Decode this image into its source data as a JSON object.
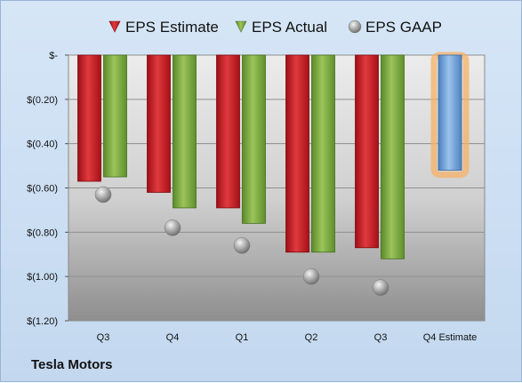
{
  "company": "Tesla Motors",
  "chart_data": {
    "type": "bar",
    "categories": [
      "Q3",
      "Q4",
      "Q1",
      "Q2",
      "Q3",
      "Q4 Estimate"
    ],
    "series": [
      {
        "name": "EPS Estimate",
        "values": [
          -0.57,
          -0.62,
          -0.69,
          -0.89,
          -0.87,
          null
        ],
        "color": "#c8161d"
      },
      {
        "name": "EPS Actual",
        "values": [
          -0.55,
          -0.69,
          -0.76,
          -0.89,
          -0.92,
          null
        ],
        "color": "#77a33b"
      },
      {
        "name": "EPS GAAP",
        "values": [
          -0.63,
          -0.78,
          -0.86,
          -1.0,
          -1.05,
          null
        ],
        "color": "#b8b8b8"
      }
    ],
    "q4_estimate": {
      "value": -0.52,
      "color": "#6fa0d6",
      "glow": "#f5b165"
    },
    "ylim": [
      -1.2,
      0
    ],
    "yticks": [
      0,
      -0.2,
      -0.4,
      -0.6,
      -0.8,
      -1.0,
      -1.2
    ],
    "ytick_labels": [
      "$-",
      "$(0.20)",
      "$(0.40)",
      "$(0.60)",
      "$(0.80)",
      "$(1.00)",
      "$(1.20)"
    ],
    "legend_position": "top",
    "grid": true
  }
}
